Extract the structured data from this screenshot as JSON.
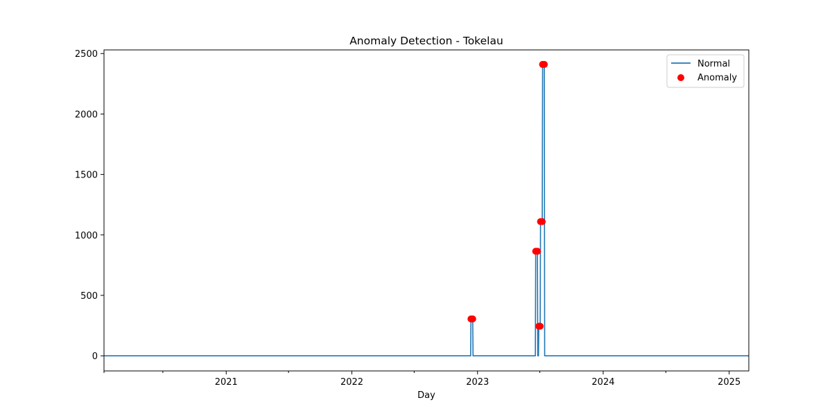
{
  "chart_data": {
    "type": "line",
    "title": "Anomaly Detection - Tokelau",
    "xlabel": "Day",
    "ylabel": "",
    "xlim": [
      "2020-01-12",
      "2025-02-27"
    ],
    "ylim": [
      -125,
      2530
    ],
    "x_ticks": [
      {
        "date": "2021-01-01",
        "label": "2021"
      },
      {
        "date": "2022-01-01",
        "label": "2022"
      },
      {
        "date": "2023-01-01",
        "label": "2023"
      },
      {
        "date": "2024-01-01",
        "label": "2024"
      },
      {
        "date": "2025-01-01",
        "label": "2025"
      }
    ],
    "x_minor_ticks": [
      "2020-01-01",
      "2020-07-01",
      "2021-07-01",
      "2022-07-01",
      "2023-07-01",
      "2024-07-01"
    ],
    "y_ticks": [
      0,
      500,
      1000,
      1500,
      2000,
      2500
    ],
    "grid": false,
    "legend_position": "top-right",
    "series": [
      {
        "name": "Normal",
        "kind": "line",
        "color": "#1f77b4",
        "points": [
          [
            "2020-01-12",
            0
          ],
          [
            "2022-12-12",
            0
          ],
          [
            "2022-12-13",
            305
          ],
          [
            "2022-12-18",
            305
          ],
          [
            "2022-12-19",
            0
          ],
          [
            "2023-06-18",
            0
          ],
          [
            "2023-06-19",
            865
          ],
          [
            "2023-06-24",
            865
          ],
          [
            "2023-06-25",
            0
          ],
          [
            "2023-06-27",
            0
          ],
          [
            "2023-06-28",
            245
          ],
          [
            "2023-07-02",
            245
          ],
          [
            "2023-07-03",
            1110
          ],
          [
            "2023-07-08",
            1110
          ],
          [
            "2023-07-09",
            2410
          ],
          [
            "2023-07-14",
            2410
          ],
          [
            "2023-07-15",
            0
          ],
          [
            "2025-02-27",
            0
          ]
        ]
      },
      {
        "name": "Anomaly",
        "kind": "scatter",
        "color": "#ff0000",
        "points": [
          [
            "2022-12-13",
            305
          ],
          [
            "2022-12-18",
            305
          ],
          [
            "2023-06-19",
            865
          ],
          [
            "2023-06-24",
            865
          ],
          [
            "2023-06-28",
            245
          ],
          [
            "2023-07-02",
            245
          ],
          [
            "2023-07-03",
            1110
          ],
          [
            "2023-07-08",
            1110
          ],
          [
            "2023-07-09",
            2410
          ],
          [
            "2023-07-14",
            2410
          ]
        ]
      }
    ]
  }
}
